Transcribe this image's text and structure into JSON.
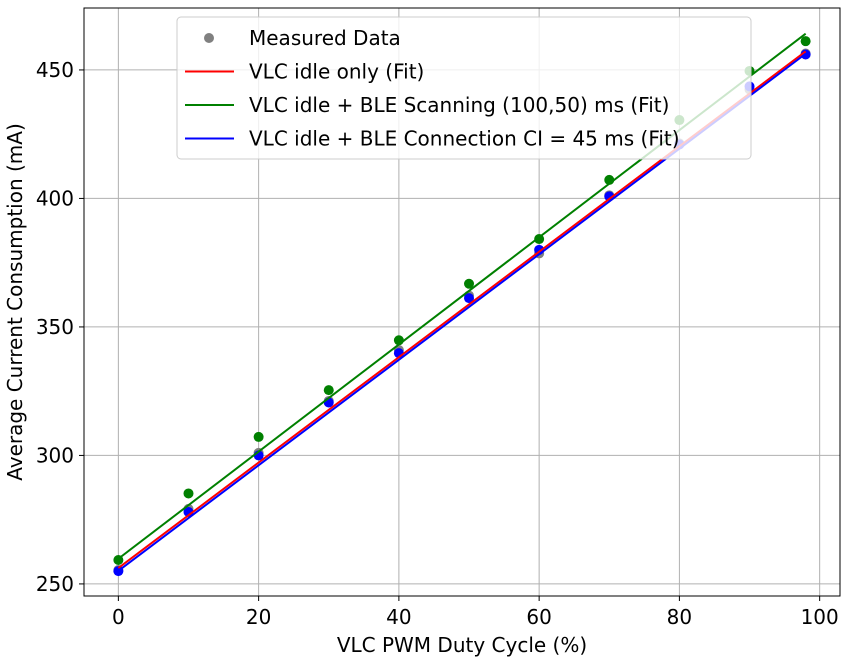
{
  "chart_data": {
    "type": "scatter",
    "xlabel": "VLC PWM Duty Cycle (%)",
    "ylabel": "Average Current Consumption (mA)",
    "xlim": [
      -4.9,
      102.9
    ],
    "ylim": [
      245.3,
      474.1
    ],
    "xticks": [
      0,
      20,
      40,
      60,
      80,
      100
    ],
    "yticks": [
      250,
      300,
      350,
      400,
      450
    ],
    "grid": true,
    "legend_position": "upper center",
    "measured_label": "Measured Data",
    "measured_legend_color": "#808080",
    "x": [
      0,
      10,
      20,
      30,
      40,
      50,
      60,
      70,
      80,
      90,
      98
    ],
    "series": [
      {
        "name": "VLC idle only (Fit)",
        "line_color": "#ff0000",
        "marker_color": "#808080",
        "measured": [
          255.4,
          279.2,
          301.0,
          321.2,
          341.0,
          362.2,
          378.6,
          401.2,
          421.4,
          442.4,
          456.4
        ],
        "fit_x": [
          0,
          98
        ],
        "fit_y": [
          256.2,
          457.2
        ]
      },
      {
        "name": "VLC idle + BLE Scanning (100,50) ms (Fit)",
        "line_color": "#008000",
        "marker_color": "#008000",
        "measured": [
          259.3,
          285.2,
          307.2,
          325.4,
          344.8,
          366.8,
          384.2,
          407.2,
          430.5,
          449.6,
          461.2
        ],
        "fit_x": [
          0,
          98
        ],
        "fit_y": [
          259.8,
          464.1
        ]
      },
      {
        "name": "VLC idle + BLE Connection CI = 45 ms (Fit)",
        "line_color": "#0000ff",
        "marker_color": "#0000ff",
        "measured": [
          255.0,
          278.0,
          300.0,
          320.6,
          339.8,
          361.2,
          380.0,
          400.8,
          421.0,
          443.6,
          456.0
        ],
        "fit_x": [
          0,
          98
        ],
        "fit_y": [
          255.1,
          456.3
        ]
      }
    ]
  }
}
